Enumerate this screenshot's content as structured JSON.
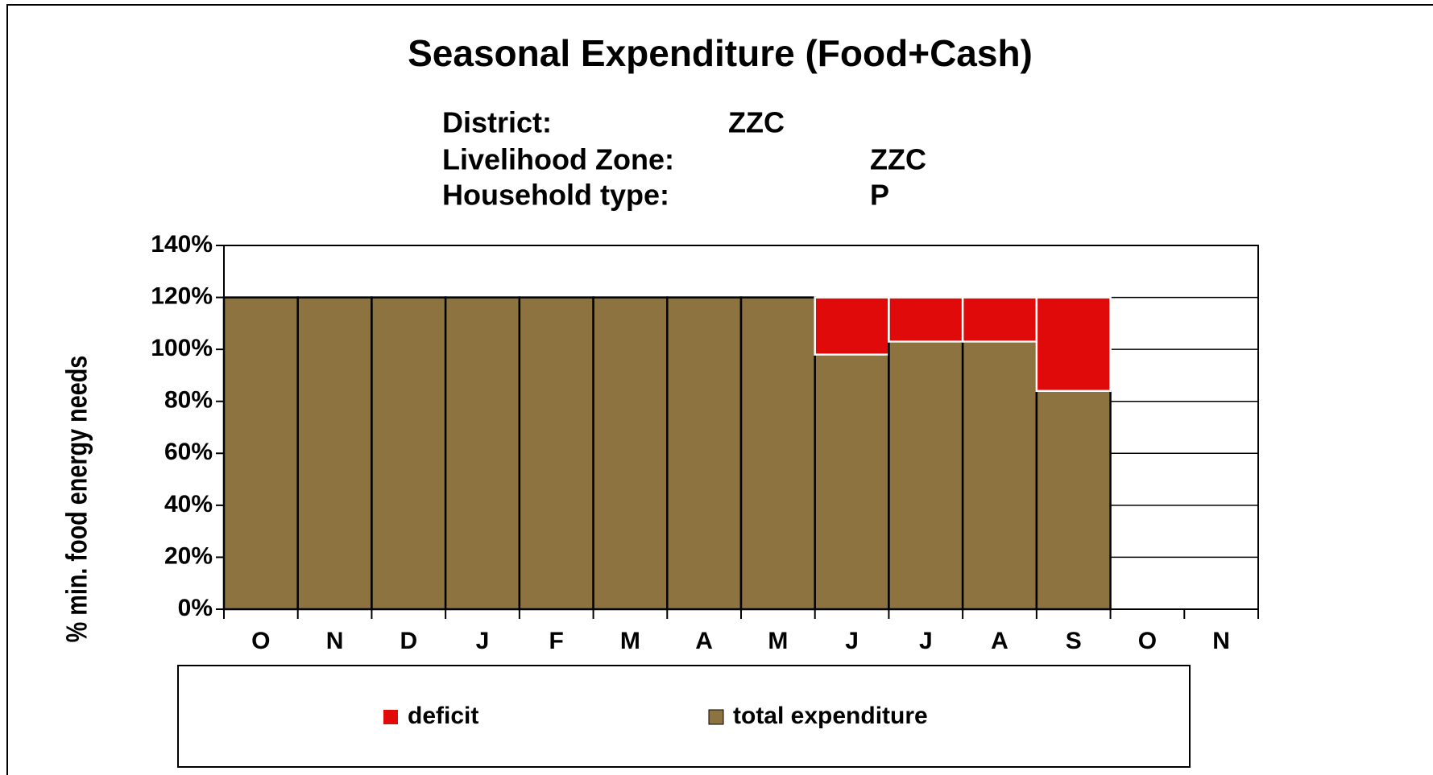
{
  "chart_data": {
    "type": "stacked_bar",
    "title": "Seasonal Expenditure (Food+Cash)",
    "subtitle": [
      {
        "label": "District:",
        "value": "ZZC"
      },
      {
        "label": "Livelihood Zone:",
        "value": "ZZC"
      },
      {
        "label": "Household type:",
        "value": "P"
      }
    ],
    "y_label": "% min. food energy needs",
    "categories": [
      "O",
      "N",
      "D",
      "J",
      "F",
      "M",
      "A",
      "M",
      "J",
      "J",
      "A",
      "S",
      "O",
      "N"
    ],
    "series": [
      {
        "name": "total expenditure",
        "color": "#8c7340",
        "values": [
          120,
          120,
          120,
          120,
          120,
          120,
          120,
          120,
          98,
          103,
          103,
          84,
          null,
          null
        ]
      },
      {
        "name": "deficit",
        "color": "#e00a0a",
        "values": [
          0,
          0,
          0,
          0,
          0,
          0,
          0,
          0,
          22,
          17,
          17,
          36,
          null,
          null
        ]
      }
    ],
    "legend_order": [
      1,
      0
    ],
    "ylim": [
      0,
      140
    ],
    "yticks": [
      {
        "value": 0,
        "label": "0%"
      },
      {
        "value": 20,
        "label": "20%"
      },
      {
        "value": 40,
        "label": "40%"
      },
      {
        "value": 60,
        "label": "60%"
      },
      {
        "value": 80,
        "label": "80%"
      },
      {
        "value": 100,
        "label": "100%"
      },
      {
        "value": 120,
        "label": "120%"
      },
      {
        "value": 140,
        "label": "140%"
      }
    ],
    "grid": true
  }
}
